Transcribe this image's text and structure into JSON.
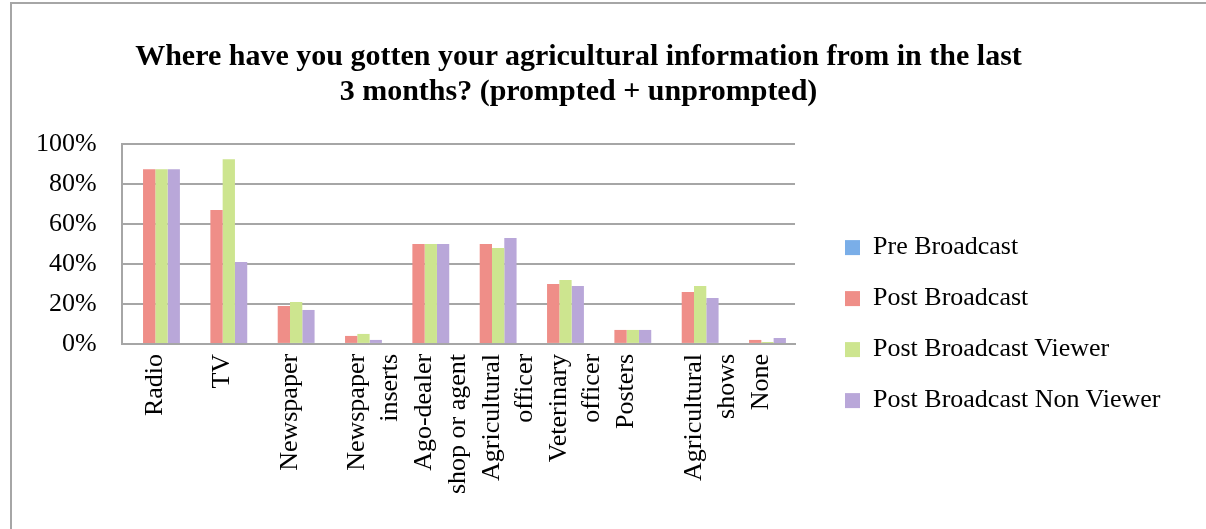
{
  "chart_data": {
    "type": "bar",
    "title": "Where have you gotten your agricultural information from in the last 3 months? (prompted + unprompted)",
    "categories": [
      "Radio",
      "TV",
      "Newspaper",
      "Newspaper inserts",
      "Ago-dealer shop or agent",
      "Agricultural officer",
      "Veterinary officer",
      "Posters",
      "Agricultural shows",
      "None"
    ],
    "series": [
      {
        "name": "Pre Broadcast",
        "color": "#7aaee8",
        "values": [
          null,
          null,
          null,
          null,
          null,
          null,
          null,
          null,
          null,
          null
        ]
      },
      {
        "name": "Post Broadcast",
        "color": "#ef8e88",
        "values": [
          87.5,
          67,
          19,
          4,
          50,
          50,
          30,
          7,
          26,
          2
        ]
      },
      {
        "name": "Post Broadcast Viewer",
        "color": "#cde58f",
        "values": [
          87.5,
          92.5,
          21,
          5,
          50,
          48,
          32,
          7,
          29,
          1
        ]
      },
      {
        "name": "Post Broadcast Non Viewer",
        "color": "#b9a7d9",
        "values": [
          87.5,
          41,
          17,
          2,
          50,
          53,
          29,
          7,
          23,
          3
        ]
      }
    ],
    "ylim": [
      0,
      100
    ],
    "yticks": [
      {
        "value": 0,
        "label": "0%"
      },
      {
        "value": 20,
        "label": "20%"
      },
      {
        "value": 40,
        "label": "40%"
      },
      {
        "value": 60,
        "label": "60%"
      },
      {
        "value": 80,
        "label": "80%"
      },
      {
        "value": 100,
        "label": "100%"
      }
    ],
    "grid": "y",
    "legend": "right"
  }
}
